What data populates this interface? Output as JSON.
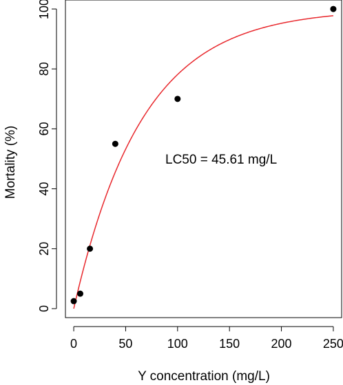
{
  "chart_data": {
    "type": "scatter",
    "xlabel": "Y concentration (mg/L)",
    "ylabel": "Mortality (%)",
    "xlim": [
      -8,
      258
    ],
    "ylim": [
      -3,
      103
    ],
    "x_ticks": [
      0,
      50,
      100,
      150,
      200,
      250
    ],
    "y_ticks": [
      0,
      20,
      40,
      60,
      80,
      100
    ],
    "grid": false,
    "points": [
      {
        "x": 0,
        "y": 2.5
      },
      {
        "x": 6.25,
        "y": 5
      },
      {
        "x": 15.6,
        "y": 20
      },
      {
        "x": 40,
        "y": 55
      },
      {
        "x": 100,
        "y": 70
      },
      {
        "x": 250,
        "y": 100
      }
    ],
    "fit_curve": {
      "model": "1 - exp(-k*x)",
      "k": 0.0152,
      "x_range": [
        0,
        250
      ]
    },
    "annotation": "LC50 = 45.61 mg/L",
    "colors": {
      "points": "#000000",
      "curve": "#e8262b",
      "axes": "#000000"
    }
  }
}
